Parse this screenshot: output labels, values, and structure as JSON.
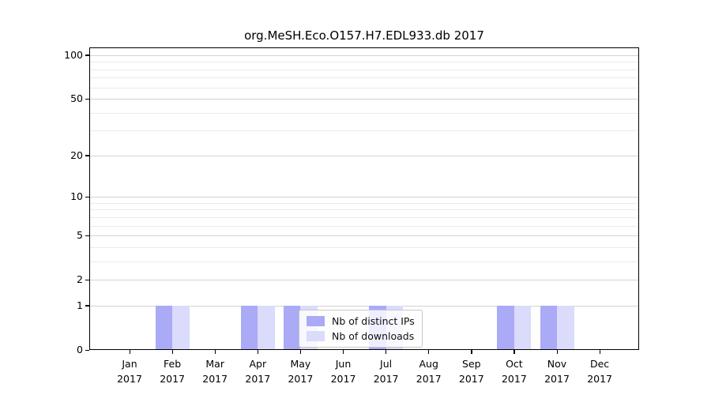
{
  "figure": {
    "title": "org.MeSH.Eco.O157.H7.EDL933.db 2017"
  },
  "chart_data": {
    "type": "bar",
    "title": "org.MeSH.Eco.O157.H7.EDL933.db 2017",
    "months": [
      "Jan",
      "Feb",
      "Mar",
      "Apr",
      "May",
      "Jun",
      "Jul",
      "Aug",
      "Sep",
      "Oct",
      "Nov",
      "Dec"
    ],
    "year": "2017",
    "series": [
      {
        "name": "Nb of distinct IPs",
        "color": "#aaaaf7",
        "values": [
          0,
          1,
          0,
          1,
          1,
          0,
          1,
          0,
          0,
          1,
          1,
          0
        ]
      },
      {
        "name": "Nb of downloads",
        "color": "#dbdbfb",
        "values": [
          0,
          1,
          0,
          1,
          1,
          0,
          1,
          0,
          0,
          1,
          1,
          0
        ]
      }
    ],
    "xlabel": "",
    "ylabel": "",
    "yscale": "log10(value+1)",
    "ylim": [
      0,
      113
    ],
    "yticks": [
      0,
      1,
      2,
      5,
      10,
      20,
      50,
      100
    ],
    "yticks_minor": [
      3,
      4,
      6,
      7,
      8,
      9,
      30,
      40,
      60,
      70,
      80,
      90
    ],
    "grid": "horizontal-only",
    "legend": {
      "position": "inside-bottom-center",
      "labels": [
        "Nb of distinct IPs",
        "Nb of downloads"
      ]
    }
  },
  "colors": {
    "background": "#ffffff",
    "axis": "#000000",
    "grid_major": "#d2d2d2",
    "grid_minor": "#ebebeb",
    "legend_border": "#c8c8c8",
    "bar_distinct_ips": "#aaaaf7",
    "bar_downloads": "#dbdbfb"
  }
}
